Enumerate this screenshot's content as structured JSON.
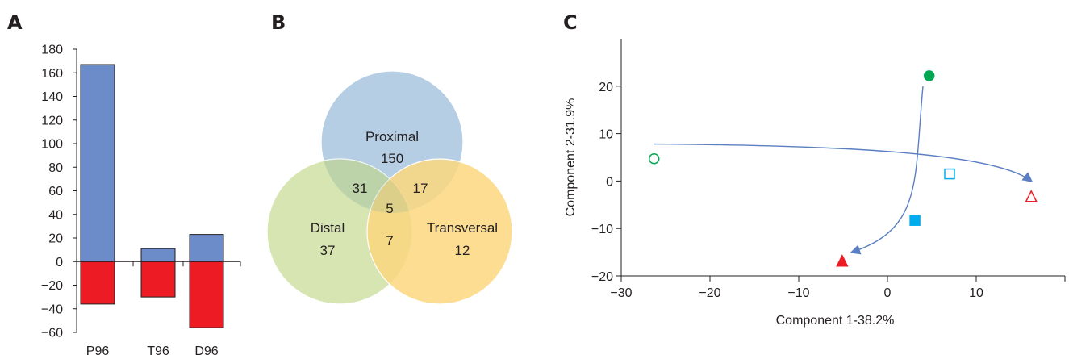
{
  "panels": [
    {
      "letter": "A"
    },
    {
      "letter": "B"
    },
    {
      "letter": "C"
    }
  ],
  "chart_data": [
    {
      "type": "bar",
      "panel": "A",
      "title": "",
      "xlabel": "",
      "ylabel": "",
      "categories": [
        "P96",
        "T96",
        "D96"
      ],
      "ylim": [
        -60,
        180
      ],
      "yticks": [
        -60,
        -40,
        -20,
        0,
        20,
        40,
        60,
        80,
        100,
        120,
        140,
        160,
        180
      ],
      "series": [
        {
          "values": [
            167,
            11,
            23
          ],
          "color": "#6b8bc9"
        },
        {
          "values": [
            -36,
            -30,
            -56
          ],
          "color": "#ed1c24"
        }
      ],
      "grid": false
    },
    {
      "type": "venn",
      "panel": "B",
      "sets": [
        {
          "name": "Proximal",
          "only": "150",
          "color": "#a9c6df"
        },
        {
          "name": "Distal",
          "only": "37",
          "color": "#cfe0a4"
        },
        {
          "name": "Transversal",
          "only": "12",
          "color": "#fbd77e"
        }
      ],
      "overlaps": {
        "proximal_distal": "31",
        "proximal_transversal": "17",
        "distal_transversal": "7",
        "all": "5"
      }
    },
    {
      "type": "scatter",
      "panel": "C",
      "title": "",
      "xlabel": "Component 1-38.2%",
      "ylabel": "Component 2-31.9%",
      "xlim": [
        -30,
        20
      ],
      "ylim": [
        -20,
        30
      ],
      "xticks": [
        -30,
        -20,
        -10,
        0,
        10
      ],
      "yticks": [
        -20,
        -10,
        0,
        10,
        20
      ],
      "xtick_labels": [
        "−30",
        "−20",
        "−10",
        "0",
        "10"
      ],
      "ytick_labels": [
        "−20",
        "−10",
        "0",
        "10",
        "20"
      ],
      "points": [
        {
          "x": -26.3,
          "y": 4.7,
          "marker": "circle",
          "filled": false,
          "color": "#00a651"
        },
        {
          "x": 4.7,
          "y": 22.2,
          "marker": "circle",
          "filled": true,
          "color": "#00a651"
        },
        {
          "x": 7.0,
          "y": 1.5,
          "marker": "square",
          "filled": false,
          "color": "#00aeef"
        },
        {
          "x": 3.1,
          "y": -8.3,
          "marker": "square",
          "filled": true,
          "color": "#00aeef"
        },
        {
          "x": 16.2,
          "y": -3.3,
          "marker": "triangle",
          "filled": false,
          "color": "#ed1c24"
        },
        {
          "x": -5.1,
          "y": -16.9,
          "marker": "triangle",
          "filled": true,
          "color": "#ed1c24"
        }
      ],
      "arrows": [
        {
          "from": [
            -26.3,
            7.8
          ],
          "to": [
            16.2,
            0.0
          ],
          "color": "#5b7fc2"
        },
        {
          "from": [
            4.0,
            20.0
          ],
          "to": [
            -4.0,
            -15.0
          ],
          "color": "#5b7fc2"
        }
      ],
      "grid": false
    }
  ]
}
